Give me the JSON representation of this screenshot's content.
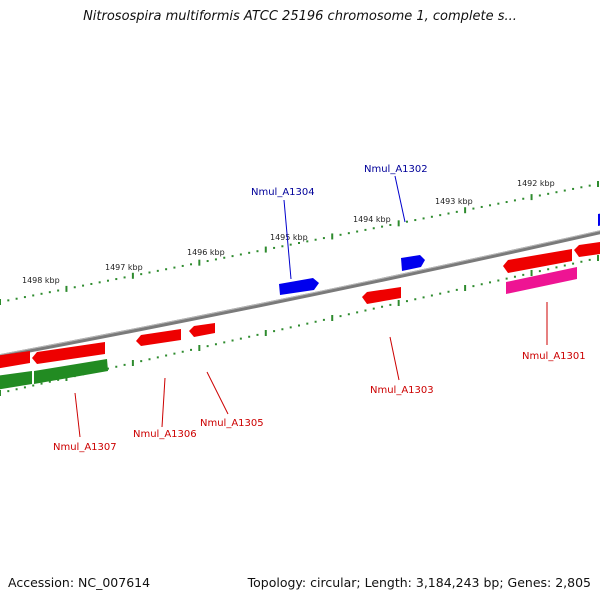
{
  "title": "Nitrosospira multiformis ATCC 25196 chromosome 1, complete s...",
  "footer": {
    "accession": "Accession: NC_007614",
    "summary": "Topology: circular; Length: 3,184,243 bp; Genes: 2,805"
  },
  "colors": {
    "backbone": "#808080",
    "tick": "#2e8b2e",
    "forward_gene": "#0000ee",
    "reverse_gene": "#ee0000",
    "pseudo_gene": "#ee1493",
    "rna_gene": "#228b22",
    "forward_label": "#000099",
    "reverse_label": "#cc0000"
  },
  "kbp_ticks": [
    "1492 kbp",
    "1493 kbp",
    "1494 kbp",
    "1495 kbp",
    "1496 kbp",
    "1497 kbp",
    "1498 kbp"
  ],
  "genes": [
    {
      "name": "Nmul_A1301",
      "strand": "reverse"
    },
    {
      "name": "Nmul_A1302",
      "strand": "forward"
    },
    {
      "name": "Nmul_A1303",
      "strand": "reverse"
    },
    {
      "name": "Nmul_A1304",
      "strand": "forward"
    },
    {
      "name": "Nmul_A1305",
      "strand": "reverse"
    },
    {
      "name": "Nmul_A1306",
      "strand": "reverse"
    },
    {
      "name": "Nmul_A1307",
      "strand": "reverse"
    }
  ]
}
